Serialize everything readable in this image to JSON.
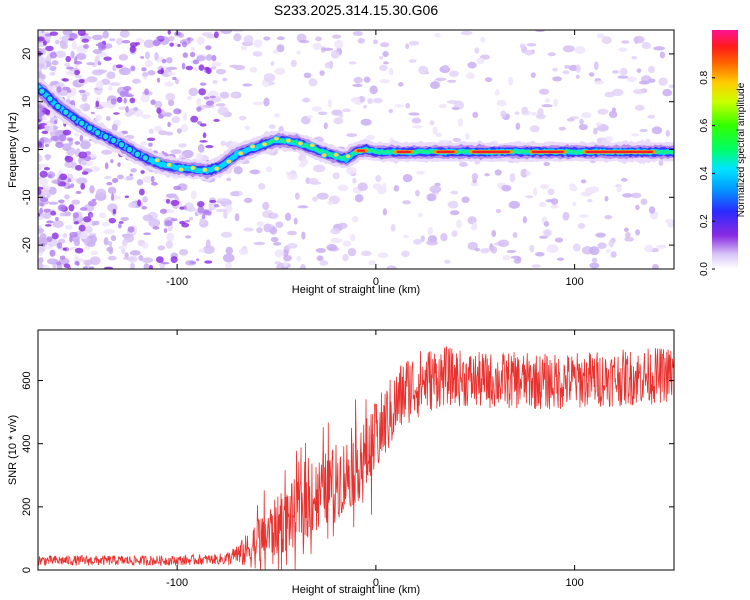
{
  "title": "S233.2025.314.15.30.G06",
  "chart_data": [
    {
      "type": "heatmap",
      "name": "spectrogram",
      "xlabel": "Height of straight line (km)",
      "ylabel": "Frequency (Hz)",
      "xlim": [
        -170,
        150
      ],
      "ylim": [
        -25,
        25
      ],
      "xticks": [
        -100,
        0,
        100
      ],
      "xtick_labels": [
        "-100",
        "0",
        "100"
      ],
      "yticks": [
        -20,
        -10,
        0,
        10,
        20
      ],
      "ytick_labels": [
        "-20",
        "-10",
        "0",
        "10",
        "20"
      ],
      "ridge": {
        "x": [
          -170,
          -160,
          -150,
          -140,
          -130,
          -120,
          -112,
          -105,
          -95,
          -85,
          -78,
          -70,
          -60,
          -50,
          -40,
          -30,
          -20,
          -15,
          -10,
          -5,
          0,
          20,
          40,
          60,
          80,
          100,
          120,
          150
        ],
        "y": [
          13,
          9,
          6,
          3.5,
          1.5,
          -1,
          -2.5,
          -3.5,
          -4,
          -4.5,
          -3.5,
          -1,
          0.5,
          2,
          1.5,
          0,
          -1.5,
          -2,
          -0.5,
          0,
          -0.5,
          -0.5,
          -0.5,
          -0.5,
          -0.5,
          -0.5,
          -0.5,
          -0.5
        ]
      },
      "colorbar": {
        "label": "Normalized spectral amplitude",
        "range": [
          0,
          1
        ],
        "ticks": [
          0.0,
          0.2,
          0.4,
          0.6,
          0.8
        ],
        "tick_labels": [
          "0.0",
          "0.2",
          "0.4",
          "0.6",
          "0.8"
        ]
      }
    },
    {
      "type": "line",
      "name": "snr",
      "xlabel": "Height of straight line (km)",
      "ylabel": "SNR (10 * v/v)",
      "xlim": [
        -170,
        150
      ],
      "ylim": [
        0,
        760
      ],
      "xticks": [
        -100,
        0,
        100
      ],
      "xtick_labels": [
        "-100",
        "0",
        "100"
      ],
      "yticks": [
        0,
        200,
        400,
        600
      ],
      "ytick_labels": [
        "0",
        "200",
        "400",
        "600"
      ],
      "color": "#e8322f",
      "trend": {
        "x": [
          -170,
          -100,
          -75,
          -65,
          -55,
          -45,
          -35,
          -25,
          -15,
          -5,
          5,
          15,
          25,
          35,
          50,
          70,
          90,
          110,
          130,
          150
        ],
        "y": [
          30,
          30,
          35,
          60,
          110,
          160,
          210,
          260,
          300,
          360,
          470,
          570,
          600,
          615,
          600,
          600,
          595,
          605,
          610,
          620
        ]
      },
      "noise": {
        "x": [
          -170,
          -80,
          -70,
          -60,
          -40,
          -20,
          0,
          20,
          40,
          150
        ],
        "amp": [
          16,
          16,
          30,
          80,
          110,
          120,
          120,
          110,
          90,
          90
        ]
      }
    }
  ]
}
